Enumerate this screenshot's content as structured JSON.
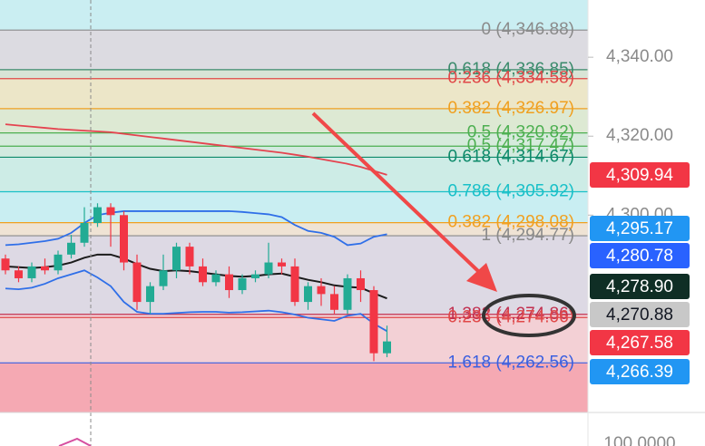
{
  "chart_data": {
    "type": "candlestick",
    "ylim": [
      4250,
      4354.5
    ],
    "yticks": [
      {
        "value": 4340,
        "label": "4,340.00"
      },
      {
        "value": 4320,
        "label": "4,320.00"
      },
      {
        "value": 4300,
        "label": "4,300.00"
      }
    ],
    "lower_pane_label": "100.0000",
    "up_color": "#22ab94",
    "down_color": "#f23645",
    "candles": [
      {
        "open": 4289,
        "high": 4290,
        "low": 4285,
        "close": 4286
      },
      {
        "open": 4286,
        "high": 4287,
        "low": 4283,
        "close": 4284
      },
      {
        "open": 4284,
        "high": 4288,
        "low": 4283,
        "close": 4287
      },
      {
        "open": 4287,
        "high": 4289,
        "low": 4285,
        "close": 4286
      },
      {
        "open": 4286,
        "high": 4291,
        "low": 4285,
        "close": 4290
      },
      {
        "open": 4290,
        "high": 4295,
        "low": 4289,
        "close": 4293
      },
      {
        "open": 4293,
        "high": 4302,
        "low": 4292,
        "close": 4298
      },
      {
        "open": 4298,
        "high": 4303,
        "low": 4297,
        "close": 4302
      },
      {
        "open": 4302,
        "high": 4303,
        "low": 4292,
        "close": 4300
      },
      {
        "open": 4300,
        "high": 4301,
        "low": 4286,
        "close": 4288
      },
      {
        "open": 4288,
        "high": 4290,
        "low": 4276,
        "close": 4278
      },
      {
        "open": 4278,
        "high": 4283,
        "low": 4275,
        "close": 4282
      },
      {
        "open": 4282,
        "high": 4290,
        "low": 4281,
        "close": 4286
      },
      {
        "open": 4286,
        "high": 4293,
        "low": 4284,
        "close": 4292
      },
      {
        "open": 4292,
        "high": 4293,
        "low": 4285,
        "close": 4287
      },
      {
        "open": 4287,
        "high": 4289,
        "low": 4282,
        "close": 4283
      },
      {
        "open": 4283,
        "high": 4286,
        "low": 4282,
        "close": 4285
      },
      {
        "open": 4285,
        "high": 4287,
        "low": 4279,
        "close": 4281
      },
      {
        "open": 4281,
        "high": 4285,
        "low": 4280,
        "close": 4284
      },
      {
        "open": 4284,
        "high": 4286,
        "low": 4283,
        "close": 4285
      },
      {
        "open": 4285,
        "high": 4293,
        "low": 4284,
        "close": 4288
      },
      {
        "open": 4288,
        "high": 4289,
        "low": 4285,
        "close": 4287
      },
      {
        "open": 4287,
        "high": 4289,
        "low": 4277,
        "close": 4278
      },
      {
        "open": 4278,
        "high": 4283,
        "low": 4276,
        "close": 4282
      },
      {
        "open": 4282,
        "high": 4284,
        "low": 4277,
        "close": 4280
      },
      {
        "open": 4280,
        "high": 4282,
        "low": 4275,
        "close": 4276
      },
      {
        "open": 4276,
        "high": 4285,
        "low": 4275,
        "close": 4284
      },
      {
        "open": 4284,
        "high": 4286,
        "low": 4278,
        "close": 4281
      },
      {
        "open": 4281,
        "high": 4282,
        "low": 4263,
        "close": 4265
      },
      {
        "open": 4265,
        "high": 4272,
        "low": 4264,
        "close": 4268
      }
    ],
    "lines": [
      {
        "color": "#e5434f",
        "values": [
          4323,
          4322.7,
          4322.4,
          4322.1,
          4321.8,
          4321.6,
          4321.4,
          4321.2,
          4321,
          4320.6,
          4320.2,
          4319.8,
          4319.4,
          4319,
          4318.6,
          4318.2,
          4317.8,
          4317.4,
          4317,
          4316.6,
          4316.2,
          4315.8,
          4315.3,
          4314.8,
          4314.2,
          4313.6,
          4313,
          4312.2,
          4311.2,
          4310.2
        ]
      },
      {
        "color": "#2f6fe8",
        "values": [
          4292.4,
          4292.6,
          4293,
          4293.4,
          4294,
          4295.5,
          4298,
          4300,
          4300.6,
          4301,
          4301,
          4301,
          4301,
          4301,
          4301,
          4301,
          4301,
          4301,
          4300.8,
          4300.5,
          4300.2,
          4299.5,
          4297.5,
          4296,
          4295.5,
          4294.5,
          4292.4,
          4292.8,
          4294.5,
          4295.17
        ]
      },
      {
        "color": "#1b1b1b",
        "values": [
          4287,
          4286.8,
          4286.6,
          4286.8,
          4287.2,
          4288,
          4289.2,
          4290,
          4290,
          4289,
          4287.6,
          4286.4,
          4285.8,
          4286,
          4285.8,
          4285.4,
          4285,
          4284.6,
          4284.4,
          4284.6,
          4285,
          4285.2,
          4284.4,
          4283.6,
          4283,
          4282.2,
          4281.8,
          4281.6,
          4280.2,
          4278.9
        ]
      },
      {
        "color": "#2f6fe8",
        "values": [
          4281.4,
          4281.2,
          4281.6,
          4282.6,
          4284,
          4285,
          4286,
          4284.2,
          4282,
          4278,
          4275.5,
          4275,
          4275,
          4275.2,
          4275.4,
          4275.5,
          4275.5,
          4275.3,
          4275.4,
          4275.6,
          4275.8,
          4275.4,
          4274.8,
          4274,
          4273.6,
          4273.2,
          4274.5,
          4275,
          4272.5,
          4270.6
        ]
      }
    ],
    "fib_levels": [
      {
        "label": "0 (4,346.88)",
        "value": 4346.88,
        "color": "#8a8a8a",
        "fill": "#dcdbe1"
      },
      {
        "label": "0.618 (4,336.85)",
        "value": 4336.85,
        "color": "#3a8a6b",
        "fill": "#d8e4d6"
      },
      {
        "label": "0.236 (4,334.58)",
        "value": 4334.58,
        "color": "#e04848",
        "fill": "#ece6c8"
      },
      {
        "label": "0.382 (4,326.97)",
        "value": 4326.97,
        "color": "#f0a020",
        "fill": "#dde9d3"
      },
      {
        "label": "0.5 (4,320.82)",
        "value": 4320.82,
        "color": "#4caf50",
        "fill": "#d6ebdc"
      },
      {
        "label": "0.5 (4,317.47)",
        "value": 4317.47,
        "color": "#4caf50",
        "fill": "#d2eadf"
      },
      {
        "label": "0.618 (4,314.67)",
        "value": 4314.67,
        "color": "#0d8a6a",
        "fill": "#cdece6"
      },
      {
        "label": "0.786 (4,305.92)",
        "value": 4305.92,
        "color": "#19c0c8",
        "fill": "#c9eef2"
      },
      {
        "label": "0.382 (4,298.08)",
        "value": 4298.08,
        "color": "#f0a020",
        "fill": "#efe3d4"
      },
      {
        "label": "1 (4,294.77)",
        "value": 4294.77,
        "color": "#8a8a8a",
        "fill": "#ddd9e4"
      },
      {
        "label": "1.382 (4,274.86)",
        "value": 4274.86,
        "color": "#c23050",
        "fill": "#f2d4d9"
      },
      {
        "label": "0.236 (4,274.06)",
        "value": 4274.06,
        "color": "#e04848",
        "fill": "#f3d0d5"
      },
      {
        "label": "1.618 (4,262.56)",
        "value": 4262.56,
        "color": "#3a5fe0",
        "fill": "#f5a9b3"
      }
    ],
    "price_badges": [
      {
        "value": 4309.94,
        "label": "4,309.94",
        "color": "#f23645",
        "text_color": "#ffffff"
      },
      {
        "value": 4295.17,
        "label": "4,295.17",
        "color": "#2196f3",
        "text_color": "#ffffff"
      },
      {
        "value": 4280.78,
        "label": "4,280.78",
        "color": "#2962ff",
        "text_color": "#ffffff"
      },
      {
        "value": 4278.9,
        "label": "4,278.90",
        "color": "#0f2e25",
        "text_color": "#ffffff"
      },
      {
        "value": 4270.88,
        "label": "4,270.88",
        "color": "#c8c8c8",
        "text_color": "#131722"
      },
      {
        "value": 4267.58,
        "label": "4,267.58",
        "color": "#f23645",
        "text_color": "#ffffff"
      },
      {
        "value": 4266.39,
        "label": "4,266.39",
        "color": "#2196f3",
        "text_color": "#ffffff"
      }
    ]
  }
}
